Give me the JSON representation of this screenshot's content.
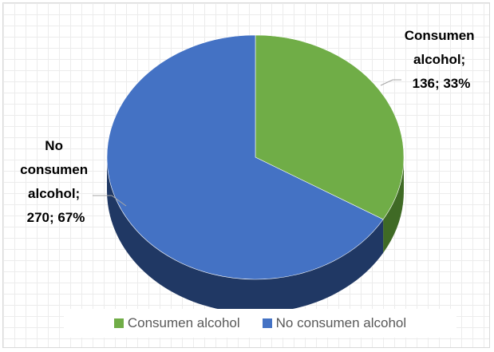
{
  "chart_data": {
    "type": "pie",
    "title": "",
    "slices": [
      {
        "name": "Consumen alcohol",
        "value": 136,
        "percent": 33,
        "color": "#70ad47",
        "side_color": "#3f6a25"
      },
      {
        "name": "No consumen alcohol",
        "value": 270,
        "percent": 67,
        "color": "#4472c4",
        "side_color": "#203864"
      }
    ],
    "data_labels": [
      {
        "lines": [
          "Consumen",
          "alcohol;",
          "136; 33%"
        ]
      },
      {
        "lines": [
          "No",
          "consumen",
          "alcohol;",
          "270; 67%"
        ]
      }
    ],
    "legend": {
      "position": "bottom",
      "entries": [
        "Consumen alcohol",
        "No consumen alcohol"
      ]
    }
  }
}
